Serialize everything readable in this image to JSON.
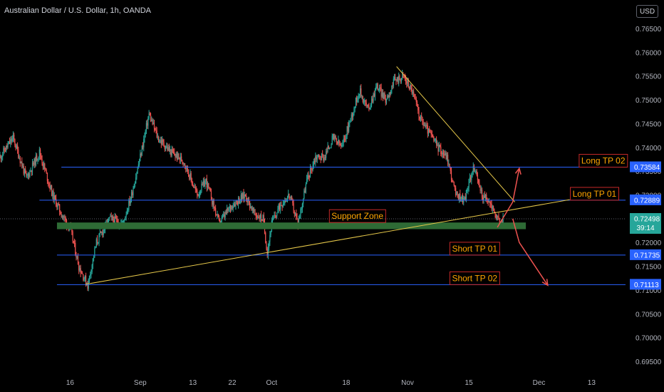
{
  "header": {
    "title": "Australian Dollar / U.S. Dollar, 1h, OANDA",
    "currency_label": "USD",
    "countdown": "39:14"
  },
  "colors": {
    "background": "#000000",
    "candle_up": "#26a69a",
    "candle_down": "#ef5350",
    "level_line": "#2962ff",
    "trendline": "#e6c84a",
    "support_zone": "#2e6b35",
    "annotation_text": "#ffa500",
    "annotation_border": "#c62828",
    "arrow": "#ef5350",
    "last_price_bg": "#26a69a"
  },
  "chart_data": {
    "type": "candlestick",
    "symbol": "AUDUSD",
    "interval": "1h",
    "x_ticks": [
      {
        "label": "16",
        "t": 16
      },
      {
        "label": "Sep",
        "t": 32
      },
      {
        "label": "13",
        "t": 44
      },
      {
        "label": "22",
        "t": 53
      },
      {
        "label": "Oct",
        "t": 62
      },
      {
        "label": "18",
        "t": 79
      },
      {
        "label": "Nov",
        "t": 93
      },
      {
        "label": "15",
        "t": 107
      },
      {
        "label": "Dec",
        "t": 123
      },
      {
        "label": "13",
        "t": 135
      }
    ],
    "y_ticks": [
      "0.76500",
      "0.76000",
      "0.75500",
      "0.75000",
      "0.74500",
      "0.74000",
      "0.73500",
      "0.73000",
      "0.72500",
      "0.72000",
      "0.71500",
      "0.71000",
      "0.70500",
      "0.70000",
      "0.69500"
    ],
    "ylim": [
      0.6935,
      0.7665
    ],
    "xlim": [
      0,
      146
    ],
    "price_path": [
      [
        0,
        0.738
      ],
      [
        3,
        0.742
      ],
      [
        6,
        0.7335
      ],
      [
        9,
        0.739
      ],
      [
        12,
        0.73
      ],
      [
        14,
        0.726
      ],
      [
        16,
        0.723
      ],
      [
        18,
        0.715
      ],
      [
        20,
        0.711
      ],
      [
        22,
        0.72
      ],
      [
        25,
        0.725
      ],
      [
        28,
        0.724
      ],
      [
        30,
        0.73
      ],
      [
        32,
        0.738
      ],
      [
        34,
        0.747
      ],
      [
        36,
        0.742
      ],
      [
        39,
        0.739
      ],
      [
        42,
        0.737
      ],
      [
        45,
        0.73
      ],
      [
        47,
        0.733
      ],
      [
        50,
        0.724
      ],
      [
        53,
        0.728
      ],
      [
        56,
        0.73
      ],
      [
        58,
        0.726
      ],
      [
        60,
        0.725
      ],
      [
        61,
        0.718
      ],
      [
        62,
        0.724
      ],
      [
        64,
        0.728
      ],
      [
        66,
        0.73
      ],
      [
        68,
        0.724
      ],
      [
        70,
        0.733
      ],
      [
        72,
        0.738
      ],
      [
        74,
        0.738
      ],
      [
        76,
        0.742
      ],
      [
        78,
        0.74
      ],
      [
        80,
        0.746
      ],
      [
        82,
        0.752
      ],
      [
        84,
        0.748
      ],
      [
        86,
        0.753
      ],
      [
        88,
        0.75
      ],
      [
        90,
        0.754
      ],
      [
        92,
        0.755
      ],
      [
        94,
        0.752
      ],
      [
        96,
        0.746
      ],
      [
        98,
        0.743
      ],
      [
        100,
        0.74
      ],
      [
        102,
        0.738
      ],
      [
        104,
        0.73
      ],
      [
        106,
        0.729
      ],
      [
        108,
        0.736
      ],
      [
        110,
        0.73
      ],
      [
        112,
        0.728
      ],
      [
        113,
        0.726
      ],
      [
        114,
        0.724
      ],
      [
        115,
        0.725
      ]
    ],
    "horizontal_levels": [
      {
        "name": "Long TP 02",
        "value": 0.73584,
        "axis_label": "0.73584",
        "x_start": 14
      },
      {
        "name": "Long TP 01",
        "value": 0.72889,
        "axis_label": "0.72889",
        "x_start": 9
      },
      {
        "name": "Short TP 01",
        "value": 0.71735,
        "axis_label": "0.71735",
        "x_start": 13
      },
      {
        "name": "Short TP 02",
        "value": 0.71113,
        "axis_label": "0.71113",
        "x_start": 13
      }
    ],
    "last_price": {
      "value": 0.72498,
      "axis_label": "0.72498"
    },
    "support_zone": {
      "label": "Support Zone",
      "y_low": 0.7228,
      "y_high": 0.7242,
      "x_start": 13,
      "x_end": 120
    },
    "trendlines": [
      {
        "from": [
          19.5,
          0.7112
        ],
        "to": [
          130,
          0.729
        ]
      },
      {
        "from": [
          90.5,
          0.757
        ],
        "to": [
          117.5,
          0.7285
        ]
      }
    ],
    "annotations": [
      {
        "text": "Long TP 02",
        "x": 132,
        "y": 0.73584
      },
      {
        "text": "Long TP 01",
        "x": 130,
        "y": 0.72889
      },
      {
        "text": "Support Zone",
        "x": 75,
        "y": 0.7242
      },
      {
        "text": "Short TP 01",
        "x": 102.5,
        "y": 0.71735
      },
      {
        "text": "Short TP 02",
        "x": 102.5,
        "y": 0.71113
      }
    ],
    "arrows": [
      {
        "direction": "up",
        "path": [
          [
            113.5,
            0.7232
          ],
          [
            117,
            0.7285
          ],
          [
            118.5,
            0.7356
          ]
        ]
      },
      {
        "direction": "down",
        "path": [
          [
            117,
            0.725
          ],
          [
            118.5,
            0.72
          ],
          [
            125,
            0.711
          ]
        ]
      }
    ]
  }
}
